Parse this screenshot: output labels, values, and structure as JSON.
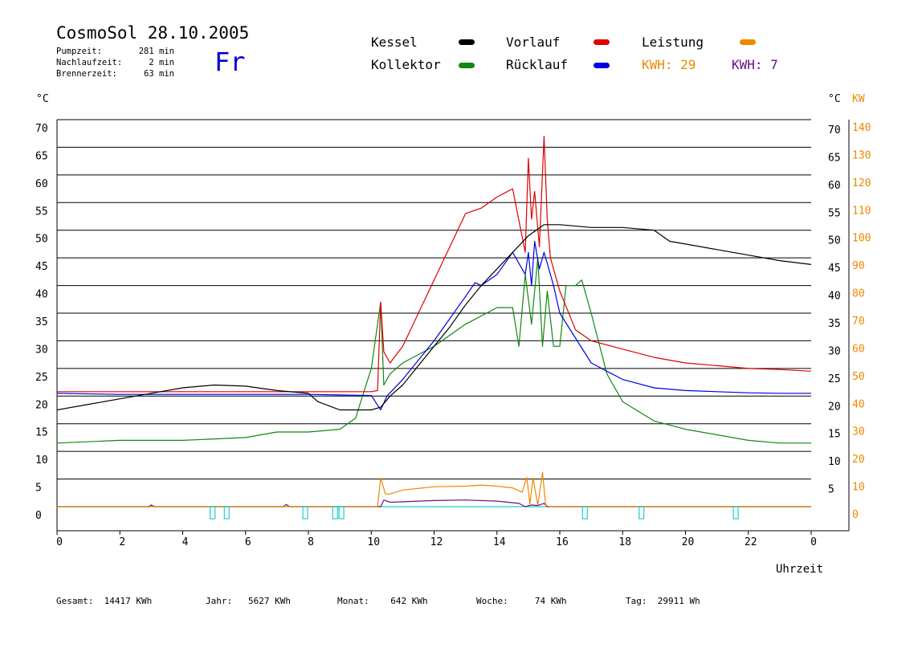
{
  "header": {
    "title": "CosmoSol 28.10.2005",
    "weekday": "Fr",
    "stats": [
      {
        "label": "Pumpzeit:",
        "value": "281 min"
      },
      {
        "label": "Nachlaufzeit:",
        "value": "2 min"
      },
      {
        "label": "Brennerzeit:",
        "value": "63 min"
      }
    ]
  },
  "legend": {
    "items": [
      {
        "label": "Kessel",
        "color": "#000000"
      },
      {
        "label": "Vorlauf",
        "color": "#dd0000"
      },
      {
        "label": "Leistung",
        "color": "#ee8800"
      },
      {
        "label": "Kollektor",
        "color": "#118811"
      },
      {
        "label": "Rücklauf",
        "color": "#0000dd"
      }
    ],
    "kwh_orange": "KWH: 29",
    "kwh_purple": "KWH: 7"
  },
  "axes": {
    "left_unit": "°C",
    "right_unit": "°C",
    "right_kw_unit": "KW",
    "x_label": "Uhrzeit"
  },
  "footer": {
    "gesamt": "Gesamt:  14417 KWh",
    "jahr": "Jahr:   5627 KWh",
    "monat": "Monat:    642 KWh",
    "woche": "Woche:     74 KWh",
    "tag": "Tag:  29911 Wh"
  },
  "chart_data": {
    "type": "line",
    "title": "CosmoSol 28.10.2005",
    "xlabel": "Uhrzeit",
    "ylabel_left": "°C",
    "ylabel_right": "°C / KW",
    "xlim": [
      0,
      24
    ],
    "ylim": [
      0,
      70
    ],
    "x_ticks": [
      "0",
      "2",
      "4",
      "6",
      "8",
      "10",
      "12",
      "14",
      "16",
      "18",
      "20",
      "22",
      "0"
    ],
    "y_ticks": [
      "0",
      "5",
      "10",
      "15",
      "20",
      "25",
      "30",
      "35",
      "40",
      "45",
      "50",
      "55",
      "60",
      "65",
      "70"
    ],
    "kw_ticks": [
      "0",
      "10",
      "20",
      "30",
      "40",
      "50",
      "60",
      "70",
      "80",
      "90",
      "100",
      "110",
      "120",
      "130",
      "140"
    ],
    "grid": true,
    "series": [
      {
        "name": "Kessel",
        "color": "#000000",
        "x": [
          0,
          1,
          2,
          3,
          4,
          5,
          6,
          7,
          8,
          8.3,
          9,
          10,
          10.3,
          10.6,
          11,
          11.5,
          12,
          12.5,
          13,
          13.5,
          14,
          14.5,
          15,
          15.5,
          16,
          17,
          18,
          19,
          19.5,
          20,
          21,
          22,
          23,
          24
        ],
        "y": [
          17.5,
          18.5,
          19.5,
          20.5,
          21.5,
          22,
          21.8,
          21,
          20.5,
          19,
          17.5,
          17.5,
          18,
          20,
          22,
          25.5,
          29,
          32.5,
          36.5,
          40,
          43,
          46,
          49,
          51,
          51,
          50.5,
          50.5,
          50,
          48,
          47.5,
          46.5,
          45.5,
          44.5,
          43.8
        ]
      },
      {
        "name": "Vorlauf",
        "color": "#dd0000",
        "x": [
          0,
          2,
          4,
          6,
          8,
          10,
          10.2,
          10.3,
          10.4,
          10.6,
          11,
          12,
          13,
          13.5,
          14,
          14.5,
          14.9,
          15,
          15.1,
          15.2,
          15.35,
          15.5,
          15.6,
          15.7,
          16,
          16.5,
          17,
          18,
          19,
          20,
          21,
          22,
          23,
          24
        ],
        "y": [
          20.8,
          20.8,
          20.8,
          20.8,
          20.8,
          20.8,
          21,
          37,
          28,
          26,
          29,
          41,
          53,
          54,
          56,
          57.5,
          46,
          63,
          52,
          57,
          47,
          67,
          52,
          45,
          39,
          32,
          30,
          28.5,
          27,
          26,
          25.5,
          25,
          24.8,
          24.5
        ]
      },
      {
        "name": "Rücklauf",
        "color": "#0000dd",
        "x": [
          0,
          2,
          4,
          6,
          8,
          9,
          10,
          10.3,
          10.5,
          11,
          12,
          13,
          13.3,
          13.5,
          14,
          14.5,
          14.9,
          15,
          15.1,
          15.2,
          15.35,
          15.5,
          15.6,
          15.8,
          16,
          17,
          18,
          19,
          20,
          21,
          22,
          23,
          24
        ],
        "y": [
          20.5,
          20.3,
          20.3,
          20.3,
          20.3,
          20.2,
          20.1,
          17.5,
          20,
          23,
          30,
          38,
          40.5,
          40,
          42,
          46,
          42,
          46,
          40,
          48,
          43,
          46,
          44,
          40,
          35,
          26,
          23,
          21.5,
          21,
          20.8,
          20.6,
          20.5,
          20.5
        ]
      },
      {
        "name": "Kollektor",
        "color": "#118811",
        "x": [
          0,
          2,
          4,
          6,
          7,
          8,
          9,
          9.5,
          10,
          10.3,
          10.4,
          10.6,
          11,
          12,
          12.5,
          13,
          14,
          14.5,
          14.7,
          14.9,
          15.1,
          15.3,
          15.45,
          15.6,
          15.8,
          16,
          16.2,
          16.5,
          16.7,
          17,
          17.5,
          18,
          19,
          20,
          21,
          22,
          23,
          24
        ],
        "y": [
          11.5,
          12,
          12,
          12.5,
          13.5,
          13.5,
          14,
          16,
          25,
          37,
          22,
          24,
          26,
          29,
          31,
          33,
          36,
          36,
          29,
          42,
          33,
          45,
          29,
          39,
          29,
          29,
          40,
          40,
          41,
          35,
          24,
          19,
          15.5,
          14,
          13,
          12,
          11.5,
          11.5
        ]
      },
      {
        "name": "Leistung",
        "color": "#ee8800",
        "x": [
          0,
          10.2,
          10.3,
          10.45,
          10.6,
          11,
          12,
          13,
          13.5,
          14,
          14.5,
          14.8,
          14.95,
          15.05,
          15.15,
          15.3,
          15.45,
          15.55,
          15.65,
          24
        ],
        "y": [
          0,
          0,
          5.2,
          2.3,
          2.3,
          3.0,
          3.6,
          3.7,
          3.9,
          3.7,
          3.4,
          2.6,
          5.3,
          0.5,
          5.2,
          0.3,
          6.2,
          0.3,
          0,
          0
        ]
      },
      {
        "name": "Leistung KWH 7",
        "color": "#661188",
        "x": [
          0,
          2.9,
          3.0,
          3.1,
          7.2,
          7.3,
          7.4,
          10.3,
          10.4,
          10.6,
          12,
          13,
          14,
          14.7,
          14.9,
          15.1,
          15.3,
          15.5,
          15.6,
          24
        ],
        "y": [
          0,
          0,
          0.3,
          0,
          0,
          0.4,
          0,
          0,
          1.2,
          0.8,
          1.1,
          1.2,
          1.0,
          0.6,
          0,
          0.3,
          0.2,
          0.6,
          0,
          0
        ]
      },
      {
        "name": "Pumpe",
        "color": "#22cccc",
        "x": [
          0,
          24
        ],
        "y": [
          0,
          0
        ]
      }
    ],
    "pump_markers": [
      4.95,
      5.4,
      7.9,
      8.85,
      9.05,
      16.8,
      18.6,
      21.6
    ]
  }
}
